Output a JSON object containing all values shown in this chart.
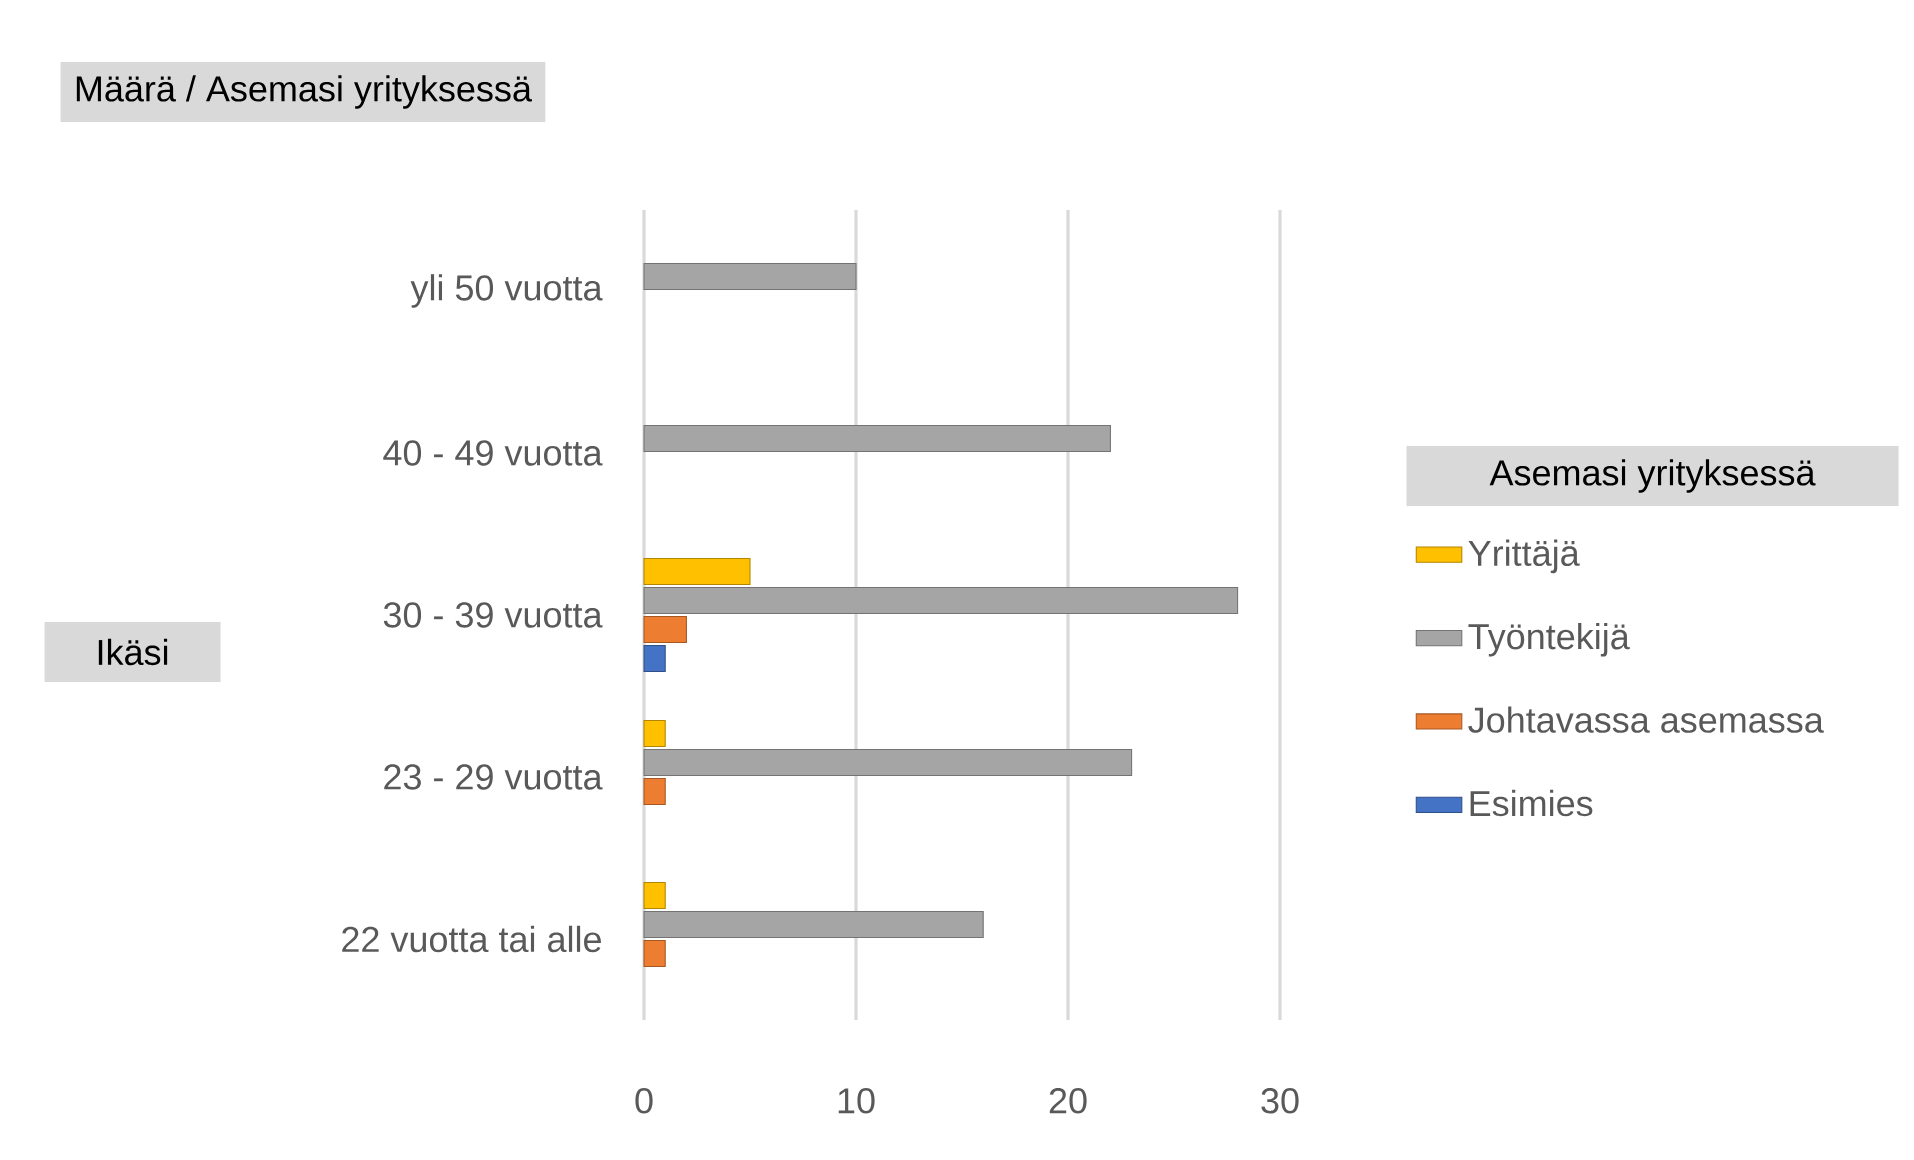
{
  "chart_data": {
    "type": "bar",
    "orientation": "horizontal",
    "title": "Määrä  / Asemasi yrityksessä",
    "ylabel": "Ikäsi",
    "legend_title": "Asemasi yrityksessä",
    "categories": [
      "yli 50 vuotta",
      "40 - 49 vuotta",
      "30 - 39 vuotta",
      "23 - 29 vuotta",
      "22 vuotta tai alle"
    ],
    "series": [
      {
        "name": "Yrittäjä",
        "color": "#ffc000",
        "values": [
          null,
          null,
          5,
          1,
          1
        ]
      },
      {
        "name": "Työntekijä",
        "color": "#a5a5a5",
        "values": [
          10,
          22,
          28,
          23,
          16
        ]
      },
      {
        "name": "Johtavassa asemassa",
        "color": "#ed7d31",
        "values": [
          null,
          null,
          2,
          1,
          1
        ]
      },
      {
        "name": "Esimies",
        "color": "#4472c4",
        "values": [
          null,
          null,
          1,
          null,
          null
        ]
      }
    ],
    "xlim": [
      0,
      30
    ],
    "xticks": [
      0,
      10,
      20,
      30
    ],
    "grid": "x",
    "legend": "right"
  }
}
